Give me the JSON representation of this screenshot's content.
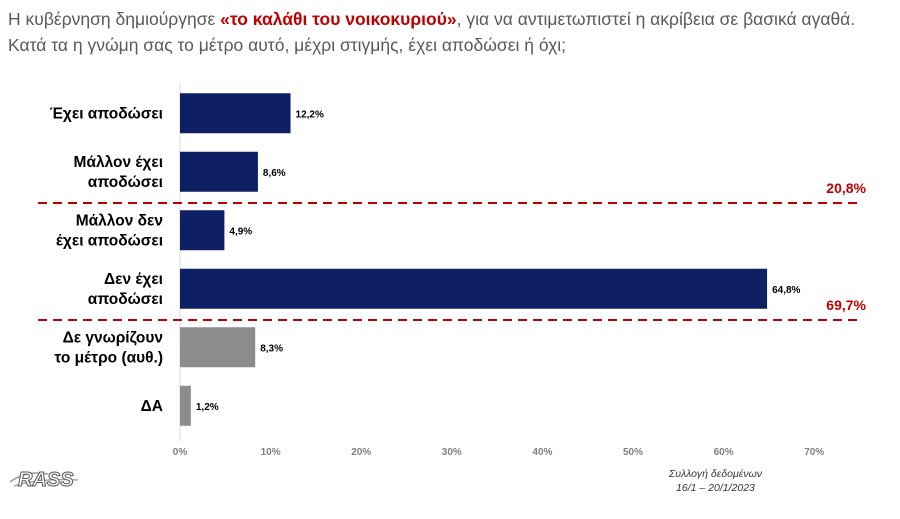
{
  "title": {
    "before": "Η κυβέρνηση δημιούργησε ",
    "highlight": "«το καλάθι του νοικοκυριού»",
    "after": ", για να αντιμετωπιστεί η ακρίβεια σε βασικά αγαθά. Κατά τα η γνώμη σας το μέτρο αυτό, μέχρι στιγμής, έχει αποδώσει ή όχι;"
  },
  "chart_data": {
    "type": "bar",
    "orientation": "horizontal",
    "categories": [
      [
        "Έχει αποδώσει"
      ],
      [
        "Μάλλον έχει",
        "αποδώσει"
      ],
      [
        "Μάλλον δεν",
        "έχει αποδώσει"
      ],
      [
        "Δεν έχει",
        "αποδώσει"
      ],
      [
        "Δε γνωρίζουν",
        "το μέτρο (αυθ.)"
      ],
      [
        "ΔΑ"
      ]
    ],
    "values": [
      12.2,
      8.6,
      4.9,
      64.8,
      8.3,
      1.2
    ],
    "value_labels": [
      "12,2%",
      "8,6%",
      "4,9%",
      "64,8%",
      "8,3%",
      "1,2%"
    ],
    "bar_colors": [
      "#0f1f63",
      "#0f1f63",
      "#0f1f63",
      "#0f1f63",
      "#8c8c8c",
      "#8c8c8c"
    ],
    "xlim": [
      0,
      70
    ],
    "xticks": [
      0,
      10,
      20,
      30,
      40,
      50,
      60,
      70
    ],
    "xtick_labels": [
      "0%",
      "10%",
      "20%",
      "30%",
      "40%",
      "50%",
      "60%",
      "70%"
    ],
    "grid": false,
    "group_totals": [
      {
        "label": "20,8%",
        "after_category": 1
      },
      {
        "label": "69,7%",
        "after_category": 3
      }
    ],
    "separator_color": "#c00000"
  },
  "logo": {
    "text": "RASS"
  },
  "footer": {
    "line1": "Συλλογή δεδομένων",
    "line2": "16/1 – 20/1/2023"
  }
}
